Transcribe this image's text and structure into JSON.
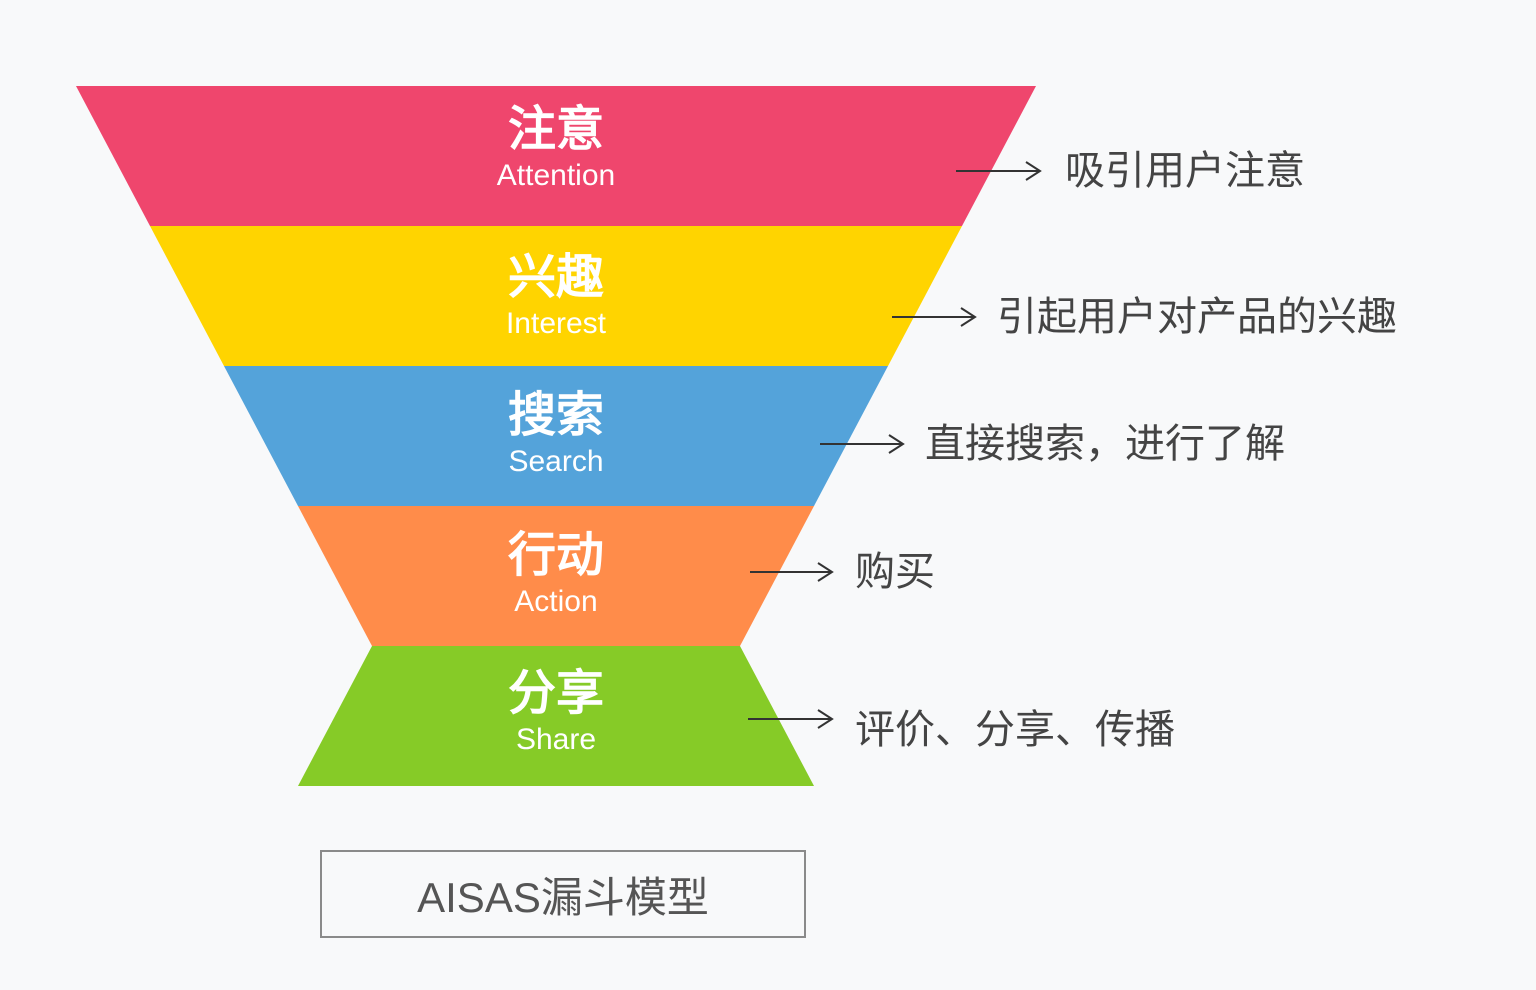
{
  "stages": [
    {
      "title_cn": "注意",
      "title_en": "Attention",
      "description": "吸引用户注意",
      "color": "#ef466d"
    },
    {
      "title_cn": "兴趣",
      "title_en": "Interest",
      "description": "引起用户对产品的兴趣",
      "color": "#ffd400"
    },
    {
      "title_cn": "搜索",
      "title_en": "Search",
      "description": "直接搜索，进行了解",
      "color": "#54a3da"
    },
    {
      "title_cn": "行动",
      "title_en": "Action",
      "description": "购买",
      "color": "#ff8c4a"
    },
    {
      "title_cn": "分享",
      "title_en": "Share",
      "description": "评价、分享、传播",
      "color": "#86cb27"
    }
  ],
  "caption": "AISAS漏斗模型",
  "arrow_color": "#333333"
}
